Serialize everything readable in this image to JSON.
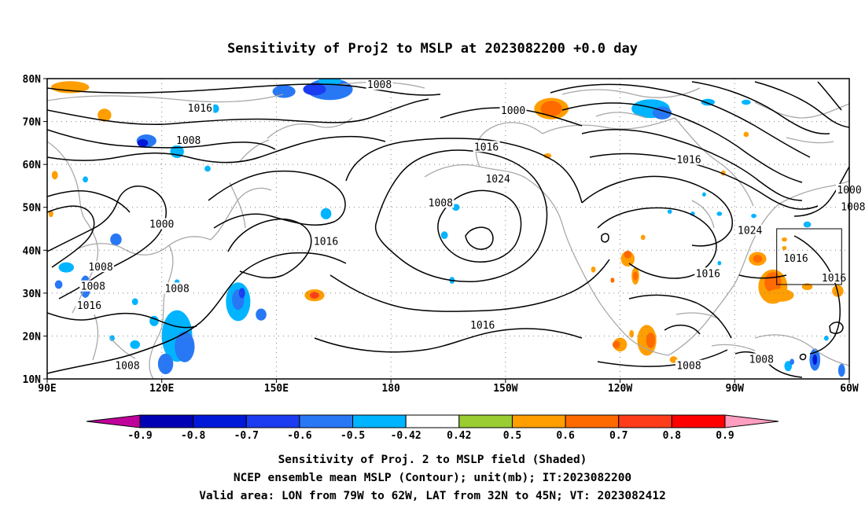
{
  "title": "Sensitivity of Proj2 to MSLP at 2023082200 +0.0 day",
  "map": {
    "lon_range": [
      90,
      300
    ],
    "lat_range": [
      10,
      80
    ],
    "x_ticks": [
      {
        "lon": 90,
        "label": "90E"
      },
      {
        "lon": 120,
        "label": "120E"
      },
      {
        "lon": 150,
        "label": "150E"
      },
      {
        "lon": 180,
        "label": "180"
      },
      {
        "lon": 210,
        "label": "150W"
      },
      {
        "lon": 240,
        "label": "120W"
      },
      {
        "lon": 270,
        "label": "90W"
      },
      {
        "lon": 300,
        "label": "60W"
      }
    ],
    "y_ticks": [
      {
        "lat": 10,
        "label": "10N"
      },
      {
        "lat": 20,
        "label": "20N"
      },
      {
        "lat": 30,
        "label": "30N"
      },
      {
        "lat": 40,
        "label": "40N"
      },
      {
        "lat": 50,
        "label": "50N"
      },
      {
        "lat": 60,
        "label": "60N"
      },
      {
        "lat": 70,
        "label": "70N"
      },
      {
        "lat": 80,
        "label": "80N"
      }
    ],
    "grid": "dotted",
    "valid_box": {
      "lon": [
        281,
        298
      ],
      "lat": [
        32,
        45
      ]
    },
    "contour_labels": [
      {
        "lon": 177,
        "lat": 78.5,
        "text": "1008"
      },
      {
        "lon": 212,
        "lat": 72.5,
        "text": "1000"
      },
      {
        "lon": 130,
        "lat": 73.0,
        "text": "1016"
      },
      {
        "lon": 127,
        "lat": 65.5,
        "text": "1008"
      },
      {
        "lon": 205,
        "lat": 64.0,
        "text": "1016"
      },
      {
        "lon": 258,
        "lat": 61.0,
        "text": "1016"
      },
      {
        "lon": 208,
        "lat": 56.5,
        "text": "1024"
      },
      {
        "lon": 193,
        "lat": 51.0,
        "text": "1008"
      },
      {
        "lon": 120,
        "lat": 46.0,
        "text": "1000"
      },
      {
        "lon": 163,
        "lat": 42.0,
        "text": "1016"
      },
      {
        "lon": 274,
        "lat": 44.5,
        "text": "1024"
      },
      {
        "lon": 286,
        "lat": 38.0,
        "text": "1016"
      },
      {
        "lon": 300,
        "lat": 54.0,
        "text": "1000"
      },
      {
        "lon": 301,
        "lat": 50.0,
        "text": "1008"
      },
      {
        "lon": 104,
        "lat": 36.0,
        "text": "1008"
      },
      {
        "lon": 102,
        "lat": 31.5,
        "text": "1008"
      },
      {
        "lon": 124,
        "lat": 31.0,
        "text": "1008"
      },
      {
        "lon": 101,
        "lat": 27.0,
        "text": "1016"
      },
      {
        "lon": 263,
        "lat": 34.5,
        "text": "1016"
      },
      {
        "lon": 296,
        "lat": 33.5,
        "text": "1016"
      },
      {
        "lon": 204,
        "lat": 22.5,
        "text": "1016"
      },
      {
        "lon": 258,
        "lat": 13.0,
        "text": "1008"
      },
      {
        "lon": 277,
        "lat": 14.5,
        "text": "1008"
      },
      {
        "lon": 111,
        "lat": 13.0,
        "text": "1008"
      }
    ],
    "shaded_blobs": [
      {
        "lon": 164,
        "lat": 77.5,
        "rx": 6,
        "ry": 2.5,
        "value": -0.6
      },
      {
        "lon": 160,
        "lat": 77.5,
        "rx": 3,
        "ry": 1.4,
        "value": -0.7
      },
      {
        "lon": 164,
        "lat": 79.5,
        "rx": 3,
        "ry": 1.0,
        "value": -0.5
      },
      {
        "lon": 152,
        "lat": 77.0,
        "rx": 3,
        "ry": 1.5,
        "value": -0.6
      },
      {
        "lon": 134,
        "lat": 73.0,
        "rx": 1,
        "ry": 1.0,
        "value": -0.5
      },
      {
        "lon": 105,
        "lat": 71.5,
        "rx": 1.8,
        "ry": 1.5,
        "value": 0.5
      },
      {
        "lon": 96,
        "lat": 78.0,
        "rx": 5,
        "ry": 1.4,
        "value": 0.5
      },
      {
        "lon": 116,
        "lat": 65.5,
        "rx": 2.6,
        "ry": 1.5,
        "value": -0.6
      },
      {
        "lon": 115,
        "lat": 65.0,
        "rx": 1.4,
        "ry": 0.9,
        "value": -0.8
      },
      {
        "lon": 124,
        "lat": 63.0,
        "rx": 1.8,
        "ry": 1.5,
        "value": -0.5
      },
      {
        "lon": 132,
        "lat": 59.0,
        "rx": 0.8,
        "ry": 0.7,
        "value": -0.5
      },
      {
        "lon": 92,
        "lat": 57.5,
        "rx": 0.8,
        "ry": 1.0,
        "value": 0.5
      },
      {
        "lon": 100,
        "lat": 56.5,
        "rx": 0.7,
        "ry": 0.7,
        "value": -0.5
      },
      {
        "lon": 108,
        "lat": 42.5,
        "rx": 1.5,
        "ry": 1.4,
        "value": -0.6
      },
      {
        "lon": 95,
        "lat": 36.0,
        "rx": 2,
        "ry": 1.2,
        "value": -0.5
      },
      {
        "lon": 93,
        "lat": 32.0,
        "rx": 1,
        "ry": 1.0,
        "value": -0.6
      },
      {
        "lon": 100,
        "lat": 31.5,
        "rx": 1.4,
        "ry": 2.6,
        "value": -0.6
      },
      {
        "lon": 91,
        "lat": 48.5,
        "rx": 0.6,
        "ry": 0.8,
        "value": 0.5
      },
      {
        "lon": 113,
        "lat": 28.0,
        "rx": 0.8,
        "ry": 0.8,
        "value": -0.5
      },
      {
        "lon": 124,
        "lat": 32.5,
        "rx": 0.7,
        "ry": 0.7,
        "value": -0.5
      },
      {
        "lon": 140,
        "lat": 28.0,
        "rx": 3.2,
        "ry": 4.5,
        "value": -0.5
      },
      {
        "lon": 140,
        "lat": 28.5,
        "rx": 1.6,
        "ry": 2.4,
        "value": -0.6
      },
      {
        "lon": 141,
        "lat": 30.0,
        "rx": 0.8,
        "ry": 1.2,
        "value": -0.7
      },
      {
        "lon": 146,
        "lat": 25.0,
        "rx": 1.4,
        "ry": 1.4,
        "value": -0.6
      },
      {
        "lon": 124,
        "lat": 20.0,
        "rx": 4,
        "ry": 6,
        "value": -0.5
      },
      {
        "lon": 126,
        "lat": 17.5,
        "rx": 2.6,
        "ry": 3.6,
        "value": -0.6
      },
      {
        "lon": 121,
        "lat": 13.5,
        "rx": 2,
        "ry": 2.4,
        "value": -0.6
      },
      {
        "lon": 113,
        "lat": 18.0,
        "rx": 1.3,
        "ry": 1.0,
        "value": -0.5
      },
      {
        "lon": 118,
        "lat": 23.5,
        "rx": 1.2,
        "ry": 1.2,
        "value": -0.5
      },
      {
        "lon": 107,
        "lat": 19.5,
        "rx": 0.7,
        "ry": 0.7,
        "value": -0.5
      },
      {
        "lon": 160,
        "lat": 29.5,
        "rx": 2.6,
        "ry": 1.4,
        "value": 0.5
      },
      {
        "lon": 160,
        "lat": 29.5,
        "rx": 1.2,
        "ry": 0.8,
        "value": 0.7
      },
      {
        "lon": 163,
        "lat": 48.5,
        "rx": 1.4,
        "ry": 1.3,
        "value": -0.5
      },
      {
        "lon": 197,
        "lat": 50.0,
        "rx": 1.0,
        "ry": 0.8,
        "value": -0.5
      },
      {
        "lon": 194,
        "lat": 43.5,
        "rx": 0.9,
        "ry": 0.9,
        "value": -0.5
      },
      {
        "lon": 196,
        "lat": 33.0,
        "rx": 0.7,
        "ry": 0.8,
        "value": -0.5
      },
      {
        "lon": 222,
        "lat": 73.0,
        "rx": 4.5,
        "ry": 2.5,
        "value": 0.5
      },
      {
        "lon": 222,
        "lat": 73.0,
        "rx": 2.8,
        "ry": 1.8,
        "value": 0.6
      },
      {
        "lon": 221,
        "lat": 62.0,
        "rx": 1.0,
        "ry": 0.6,
        "value": 0.5
      },
      {
        "lon": 248,
        "lat": 73.0,
        "rx": 5,
        "ry": 2.2,
        "value": -0.5
      },
      {
        "lon": 251,
        "lat": 72.0,
        "rx": 2.5,
        "ry": 1.5,
        "value": -0.6
      },
      {
        "lon": 263,
        "lat": 74.5,
        "rx": 1.8,
        "ry": 0.8,
        "value": -0.5
      },
      {
        "lon": 273,
        "lat": 74.5,
        "rx": 1.2,
        "ry": 0.6,
        "value": -0.5
      },
      {
        "lon": 242,
        "lat": 38.0,
        "rx": 1.8,
        "ry": 1.8,
        "value": 0.5
      },
      {
        "lon": 242,
        "lat": 39.0,
        "rx": 1.0,
        "ry": 0.9,
        "value": 0.6
      },
      {
        "lon": 244,
        "lat": 34.0,
        "rx": 1.0,
        "ry": 2.0,
        "value": 0.5
      },
      {
        "lon": 244,
        "lat": 34.0,
        "rx": 0.6,
        "ry": 1.0,
        "value": 0.6
      },
      {
        "lon": 238,
        "lat": 33.0,
        "rx": 0.5,
        "ry": 0.6,
        "value": 0.6
      },
      {
        "lon": 246,
        "lat": 43.0,
        "rx": 0.6,
        "ry": 0.6,
        "value": 0.5
      },
      {
        "lon": 240,
        "lat": 18.0,
        "rx": 1.8,
        "ry": 1.6,
        "value": 0.5
      },
      {
        "lon": 239,
        "lat": 18.0,
        "rx": 1.0,
        "ry": 0.9,
        "value": 0.6
      },
      {
        "lon": 243,
        "lat": 20.5,
        "rx": 0.6,
        "ry": 0.9,
        "value": 0.5
      },
      {
        "lon": 247,
        "lat": 19.0,
        "rx": 2.5,
        "ry": 3.6,
        "value": 0.5
      },
      {
        "lon": 248,
        "lat": 19.0,
        "rx": 1.2,
        "ry": 1.8,
        "value": 0.6
      },
      {
        "lon": 254,
        "lat": 14.5,
        "rx": 1.0,
        "ry": 0.8,
        "value": 0.5
      },
      {
        "lon": 276,
        "lat": 38.0,
        "rx": 2.3,
        "ry": 1.6,
        "value": 0.5
      },
      {
        "lon": 276,
        "lat": 38.0,
        "rx": 1.2,
        "ry": 0.9,
        "value": 0.6
      },
      {
        "lon": 280,
        "lat": 31.5,
        "rx": 3.8,
        "ry": 4.0,
        "value": 0.5
      },
      {
        "lon": 280,
        "lat": 32.5,
        "rx": 2.2,
        "ry": 2.4,
        "value": 0.6
      },
      {
        "lon": 282,
        "lat": 29.5,
        "rx": 3.5,
        "ry": 1.5,
        "value": 0.5
      },
      {
        "lon": 289,
        "lat": 31.5,
        "rx": 1.4,
        "ry": 0.8,
        "value": 0.5
      },
      {
        "lon": 297,
        "lat": 30.5,
        "rx": 1.5,
        "ry": 1.4,
        "value": 0.5
      },
      {
        "lon": 283,
        "lat": 42.5,
        "rx": 0.7,
        "ry": 0.5,
        "value": 0.5
      },
      {
        "lon": 283,
        "lat": 40.5,
        "rx": 0.6,
        "ry": 0.5,
        "value": 0.5
      },
      {
        "lon": 289,
        "lat": 46.0,
        "rx": 1.0,
        "ry": 0.7,
        "value": -0.5
      },
      {
        "lon": 266,
        "lat": 48.5,
        "rx": 0.7,
        "ry": 0.5,
        "value": -0.5
      },
      {
        "lon": 275,
        "lat": 48.0,
        "rx": 0.7,
        "ry": 0.5,
        "value": -0.5
      },
      {
        "lon": 262,
        "lat": 53.0,
        "rx": 0.5,
        "ry": 0.5,
        "value": -0.5
      },
      {
        "lon": 253,
        "lat": 49.0,
        "rx": 0.6,
        "ry": 0.5,
        "value": -0.5
      },
      {
        "lon": 259,
        "lat": 48.5,
        "rx": 0.6,
        "ry": 0.5,
        "value": -0.5
      },
      {
        "lon": 267,
        "lat": 58.0,
        "rx": 0.6,
        "ry": 0.6,
        "value": 0.5
      },
      {
        "lon": 273,
        "lat": 67.0,
        "rx": 0.7,
        "ry": 0.6,
        "value": 0.5
      },
      {
        "lon": 309,
        "lat": 51.5,
        "rx": 2.2,
        "ry": 2.8,
        "value": -0.5
      },
      {
        "lon": 309,
        "lat": 52.5,
        "rx": 1.3,
        "ry": 1.6,
        "value": -0.6
      },
      {
        "lon": 294,
        "lat": 19.5,
        "rx": 0.6,
        "ry": 0.6,
        "value": -0.5
      },
      {
        "lon": 284,
        "lat": 13.0,
        "rx": 1.0,
        "ry": 1.2,
        "value": -0.5
      },
      {
        "lon": 285,
        "lat": 14.0,
        "rx": 0.6,
        "ry": 0.7,
        "value": -0.6
      },
      {
        "lon": 291,
        "lat": 14.5,
        "rx": 1.4,
        "ry": 2.6,
        "value": -0.6
      },
      {
        "lon": 291,
        "lat": 14.5,
        "rx": 0.6,
        "ry": 1.2,
        "value": -0.8
      },
      {
        "lon": 298,
        "lat": 12.0,
        "rx": 0.9,
        "ry": 1.5,
        "value": -0.6
      },
      {
        "lon": 233,
        "lat": 35.5,
        "rx": 0.6,
        "ry": 0.7,
        "value": 0.5
      },
      {
        "lon": 266,
        "lat": 37.0,
        "rx": 0.5,
        "ry": 0.5,
        "value": -0.5
      }
    ]
  },
  "colorbar": {
    "colors": [
      "#c0009a",
      "#0000b4",
      "#0018d8",
      "#1c3cf2",
      "#2878f5",
      "#00b4ff",
      "#ffffff",
      "#9acd32",
      "#ff9e00",
      "#ff6a00",
      "#ff3c1a",
      "#ff0000",
      "#ff9ec0"
    ],
    "labels": [
      "-0.9",
      "-0.8",
      "-0.7",
      "-0.6",
      "-0.5",
      "-0.42",
      "0.42",
      "0.5",
      "0.6",
      "0.7",
      "0.8",
      "0.9"
    ]
  },
  "footer": {
    "line1": "Sensitivity of Proj. 2 to MSLP field (Shaded)",
    "line2": "NCEP ensemble mean MSLP (Contour); unit(mb); IT:2023082200",
    "line3": "Valid area: LON from 79W to 62W, LAT from 32N to 45N; VT: 2023082412"
  }
}
